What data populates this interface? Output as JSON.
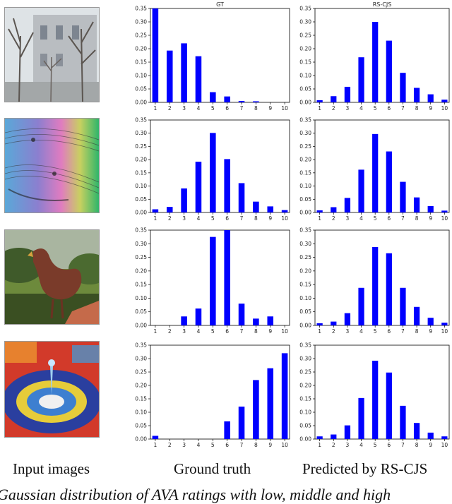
{
  "captions": {
    "input": "Input images",
    "ground_truth": "Ground truth",
    "predicted": "Predicted by RS-CJS",
    "figure_caption": "Gaussian distribution of AVA ratings with low, middle and high"
  },
  "input_images": [
    {
      "name": "winter-trees-building"
    },
    {
      "name": "colorful-music-sheet"
    },
    {
      "name": "rooster-sculpture"
    },
    {
      "name": "water-drop-splash"
    }
  ],
  "colors": {
    "bar": "#0000ff"
  },
  "chart_data": [
    {
      "type": "bar",
      "title": "GT",
      "categories": [
        "1",
        "2",
        "3",
        "4",
        "5",
        "6",
        "7",
        "8",
        "9",
        "10"
      ],
      "values": [
        0.35,
        0.193,
        0.22,
        0.172,
        0.038,
        0.022,
        0.005,
        0.004,
        0,
        0
      ],
      "ylim": [
        0,
        0.35
      ],
      "yticks": [
        "0.00",
        "0.05",
        "0.10",
        "0.15",
        "0.20",
        "0.25",
        "0.30",
        "0.35"
      ]
    },
    {
      "type": "bar",
      "title": "RS-CJS",
      "categories": [
        "1",
        "2",
        "3",
        "4",
        "5",
        "6",
        "7",
        "8",
        "9",
        "10"
      ],
      "values": [
        0.008,
        0.023,
        0.058,
        0.168,
        0.3,
        0.23,
        0.11,
        0.054,
        0.03,
        0.01
      ],
      "ylim": [
        0,
        0.35
      ],
      "yticks": [
        "0.00",
        "0.05",
        "0.10",
        "0.15",
        "0.20",
        "0.25",
        "0.30",
        "0.35"
      ]
    },
    {
      "type": "bar",
      "title": "",
      "categories": [
        "1",
        "2",
        "3",
        "4",
        "5",
        "6",
        "7",
        "8",
        "9",
        "10"
      ],
      "values": [
        0.012,
        0.021,
        0.091,
        0.192,
        0.301,
        0.202,
        0.111,
        0.041,
        0.023,
        0.009
      ],
      "ylim": [
        0,
        0.35
      ],
      "yticks": [
        "0.00",
        "0.05",
        "0.10",
        "0.15",
        "0.20",
        "0.25",
        "0.30",
        "0.35"
      ]
    },
    {
      "type": "bar",
      "title": "",
      "categories": [
        "1",
        "2",
        "3",
        "4",
        "5",
        "6",
        "7",
        "8",
        "9",
        "10"
      ],
      "values": [
        0.008,
        0.02,
        0.055,
        0.162,
        0.297,
        0.231,
        0.116,
        0.057,
        0.024,
        0.007
      ],
      "ylim": [
        0,
        0.35
      ],
      "yticks": [
        "0.00",
        "0.05",
        "0.10",
        "0.15",
        "0.20",
        "0.25",
        "0.30",
        "0.35"
      ]
    },
    {
      "type": "bar",
      "title": "",
      "categories": [
        "1",
        "2",
        "3",
        "4",
        "5",
        "6",
        "7",
        "8",
        "9",
        "10"
      ],
      "values": [
        0,
        0,
        0.033,
        0.062,
        0.325,
        0.35,
        0.08,
        0.025,
        0.033,
        0
      ],
      "ylim": [
        0,
        0.35
      ],
      "yticks": [
        "0.00",
        "0.05",
        "0.10",
        "0.15",
        "0.20",
        "0.25",
        "0.30",
        "0.35"
      ]
    },
    {
      "type": "bar",
      "title": "",
      "categories": [
        "1",
        "2",
        "3",
        "4",
        "5",
        "6",
        "7",
        "8",
        "9",
        "10"
      ],
      "values": [
        0.008,
        0.014,
        0.045,
        0.138,
        0.288,
        0.265,
        0.138,
        0.068,
        0.028,
        0.01
      ],
      "ylim": [
        0,
        0.35
      ],
      "yticks": [
        "0.00",
        "0.05",
        "0.10",
        "0.15",
        "0.20",
        "0.25",
        "0.30",
        "0.35"
      ]
    },
    {
      "type": "bar",
      "title": "",
      "categories": [
        "1",
        "2",
        "3",
        "4",
        "5",
        "6",
        "7",
        "8",
        "9",
        "10"
      ],
      "values": [
        0.012,
        0,
        0,
        0,
        0,
        0.066,
        0.121,
        0.22,
        0.264,
        0.32
      ],
      "ylim": [
        0,
        0.35
      ],
      "yticks": [
        "0.00",
        "0.05",
        "0.10",
        "0.15",
        "0.20",
        "0.25",
        "0.30",
        "0.35"
      ]
    },
    {
      "type": "bar",
      "title": "",
      "categories": [
        "1",
        "2",
        "3",
        "4",
        "5",
        "6",
        "7",
        "8",
        "9",
        "10"
      ],
      "values": [
        0.01,
        0.017,
        0.051,
        0.153,
        0.292,
        0.248,
        0.124,
        0.06,
        0.024,
        0.01
      ],
      "ylim": [
        0,
        0.35
      ],
      "yticks": [
        "0.00",
        "0.05",
        "0.10",
        "0.15",
        "0.20",
        "0.25",
        "0.30",
        "0.35"
      ]
    }
  ]
}
